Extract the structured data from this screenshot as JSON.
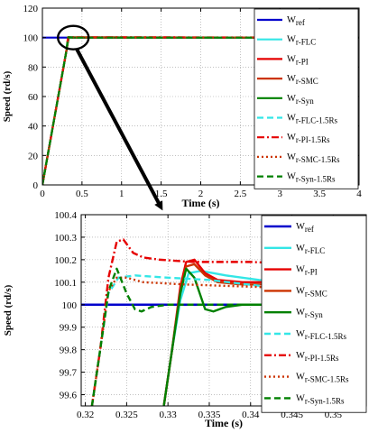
{
  "chart_data": [
    {
      "type": "line",
      "xlabel": "Time (s)",
      "ylabel": "Speed (rd/s)",
      "xlim": [
        0,
        4
      ],
      "ylim": [
        0,
        120
      ],
      "xticks": [
        0,
        0.5,
        1,
        1.5,
        2,
        2.5,
        3,
        3.5,
        4
      ],
      "xtick_labels": [
        "0",
        "0.5",
        "1",
        "1.5",
        "2",
        "2.5",
        "3",
        "3.5",
        "4"
      ],
      "yticks": [
        0,
        20,
        40,
        60,
        80,
        100,
        120
      ],
      "ytick_labels": [
        "0",
        "20",
        "40",
        "60",
        "80",
        "100",
        "120"
      ],
      "grid": true,
      "legend_position": "top-right",
      "annotation": "zoom circle around the rise to 100 rd/s, arrow pointing to the zoomed plot",
      "series": [
        {
          "name_main": "W",
          "name_sub": "ref",
          "color": "#0000cc",
          "dash": "solid",
          "x": [
            0,
            0.32,
            0.322,
            4
          ],
          "y": [
            100,
            100,
            100,
            100
          ]
        },
        {
          "name_main": "W",
          "name_sub": "r-FLC",
          "color": "#33e6e6",
          "dash": "solid",
          "x": [
            0,
            0.1,
            0.2,
            0.3,
            0.33,
            0.4,
            4
          ],
          "y": [
            0,
            30,
            60,
            90,
            100.1,
            100.1,
            100.02
          ]
        },
        {
          "name_main": "W",
          "name_sub": "r-PI",
          "color": "#e60000",
          "dash": "solid",
          "x": [
            0,
            0.1,
            0.2,
            0.3,
            0.332,
            0.4,
            4
          ],
          "y": [
            0,
            30,
            60,
            90,
            100.2,
            100.1,
            100.05
          ]
        },
        {
          "name_main": "W",
          "name_sub": "r-SMC",
          "color": "#cc3300",
          "dash": "solid",
          "x": [
            0,
            0.1,
            0.2,
            0.3,
            0.332,
            0.4,
            4
          ],
          "y": [
            0,
            30,
            60,
            90,
            100.17,
            100.1,
            100.05
          ]
        },
        {
          "name_main": "W",
          "name_sub": "r-Syn",
          "color": "#008000",
          "dash": "solid",
          "x": [
            0,
            0.1,
            0.2,
            0.3,
            0.332,
            0.4,
            4
          ],
          "y": [
            0,
            30,
            60,
            90,
            100.18,
            100,
            100
          ]
        },
        {
          "name_main": "W",
          "name_sub": "r-FLC-1.5Rs",
          "color": "#33e6e6",
          "dash": "dashed",
          "x": [
            0,
            0.1,
            0.2,
            0.3,
            0.325,
            0.4,
            4
          ],
          "y": [
            0,
            30,
            60,
            90,
            100.13,
            100.08,
            100.02
          ]
        },
        {
          "name_main": "W",
          "name_sub": "r-PI-1.5Rs",
          "color": "#e60000",
          "dash": "dashdot",
          "x": [
            0,
            0.1,
            0.2,
            0.3,
            0.324,
            0.4,
            4
          ],
          "y": [
            0,
            30,
            60,
            90,
            100.29,
            100.19,
            100.1
          ]
        },
        {
          "name_main": "W",
          "name_sub": "r-SMC-1.5Rs",
          "color": "#cc3300",
          "dash": "dotted",
          "x": [
            0,
            0.1,
            0.2,
            0.3,
            0.324,
            0.4,
            4
          ],
          "y": [
            0,
            30,
            60,
            90,
            100.13,
            100.09,
            100.05
          ]
        },
        {
          "name_main": "W",
          "name_sub": "r-Syn-1.5Rs",
          "color": "#008000",
          "dash": "dashed",
          "x": [
            0,
            0.1,
            0.2,
            0.3,
            0.324,
            0.4,
            4
          ],
          "y": [
            0,
            30,
            60,
            90,
            100.16,
            100,
            100
          ]
        }
      ]
    },
    {
      "type": "line",
      "xlabel": "Time (s)",
      "ylabel": "Speed (rd/s)",
      "xlim": [
        0.3195,
        0.354
      ],
      "ylim": [
        99.55,
        100.4
      ],
      "xticks": [
        0.32,
        0.325,
        0.33,
        0.335,
        0.34,
        0.345,
        0.35
      ],
      "xtick_labels": [
        "0.32",
        "0.325",
        "0.33",
        "0.335",
        "0.34",
        "0.345",
        "0.35"
      ],
      "yticks": [
        99.6,
        99.7,
        99.8,
        99.9,
        100,
        100.1,
        100.2,
        100.3,
        100.4
      ],
      "ytick_labels": [
        "99.6",
        "99.7",
        "99.8",
        "99.9",
        "100",
        "100.1",
        "100.2",
        "100.3",
        "100.4"
      ],
      "grid": true,
      "legend_position": "top-right",
      "series": [
        {
          "name_main": "W",
          "name_sub": "ref",
          "color": "#0000cc",
          "dash": "solid",
          "x": [
            0.3195,
            0.354
          ],
          "y": [
            100,
            100
          ]
        },
        {
          "name_main": "W",
          "name_sub": "r-FLC",
          "color": "#33e6e6",
          "dash": "solid",
          "x": [
            0.3295,
            0.3305,
            0.3315,
            0.3325,
            0.334,
            0.337,
            0.341,
            0.346,
            0.354
          ],
          "y": [
            99.55,
            99.8,
            100.02,
            100.14,
            100.15,
            100.13,
            100.11,
            100.09,
            100.07
          ]
        },
        {
          "name_main": "W",
          "name_sub": "r-PI",
          "color": "#e60000",
          "dash": "solid",
          "x": [
            0.3295,
            0.3305,
            0.3315,
            0.3322,
            0.3332,
            0.3345,
            0.336,
            0.339,
            0.343,
            0.348,
            0.354
          ],
          "y": [
            99.55,
            99.8,
            100.08,
            100.19,
            100.2,
            100.14,
            100.11,
            100.1,
            100.1,
            100.09,
            100.09
          ]
        },
        {
          "name_main": "W",
          "name_sub": "r-SMC",
          "color": "#cc3300",
          "dash": "solid",
          "x": [
            0.3295,
            0.3305,
            0.3315,
            0.3322,
            0.3332,
            0.3345,
            0.336,
            0.339,
            0.343,
            0.348,
            0.354
          ],
          "y": [
            99.55,
            99.8,
            100.06,
            100.17,
            100.18,
            100.13,
            100.1,
            100.09,
            100.09,
            100.08,
            100.08
          ]
        },
        {
          "name_main": "W",
          "name_sub": "r-Syn",
          "color": "#008000",
          "dash": "solid",
          "x": [
            0.3295,
            0.3305,
            0.3315,
            0.3322,
            0.3332,
            0.3345,
            0.3355,
            0.337,
            0.339,
            0.354
          ],
          "y": [
            99.55,
            99.8,
            100.05,
            100.16,
            100.12,
            99.98,
            99.97,
            99.99,
            100,
            100
          ]
        },
        {
          "name_main": "W",
          "name_sub": "r-FLC-1.5Rs",
          "color": "#33e6e6",
          "dash": "dashed",
          "x": [
            0.3208,
            0.3218,
            0.3228,
            0.324,
            0.326,
            0.33,
            0.335,
            0.342,
            0.348,
            0.354
          ],
          "y": [
            99.55,
            99.8,
            100.05,
            100.12,
            100.13,
            100.12,
            100.11,
            100.08,
            100.06,
            100.05
          ]
        },
        {
          "name_main": "W",
          "name_sub": "r-PI-1.5Rs",
          "color": "#e60000",
          "dash": "dashdot",
          "x": [
            0.3208,
            0.3218,
            0.3228,
            0.3238,
            0.3246,
            0.3258,
            0.327,
            0.329,
            0.333,
            0.34,
            0.347,
            0.354
          ],
          "y": [
            99.55,
            99.8,
            100.12,
            100.28,
            100.29,
            100.23,
            100.21,
            100.2,
            100.19,
            100.19,
            100.18,
            100.17
          ]
        },
        {
          "name_main": "W",
          "name_sub": "r-SMC-1.5Rs",
          "color": "#cc3300",
          "dash": "dotted",
          "x": [
            0.3208,
            0.3218,
            0.3228,
            0.3238,
            0.325,
            0.327,
            0.332,
            0.34,
            0.348,
            0.354
          ],
          "y": [
            99.55,
            99.8,
            100.06,
            100.12,
            100.12,
            100.1,
            100.09,
            100.08,
            100.07,
            100.07
          ]
        },
        {
          "name_main": "W",
          "name_sub": "r-Syn-1.5Rs",
          "color": "#008000",
          "dash": "dashed",
          "x": [
            0.3208,
            0.3218,
            0.3228,
            0.3238,
            0.325,
            0.326,
            0.3268,
            0.328,
            0.33,
            0.354
          ],
          "y": [
            99.55,
            99.8,
            100.06,
            100.16,
            100.05,
            99.98,
            99.97,
            99.99,
            100,
            100
          ]
        }
      ]
    }
  ]
}
